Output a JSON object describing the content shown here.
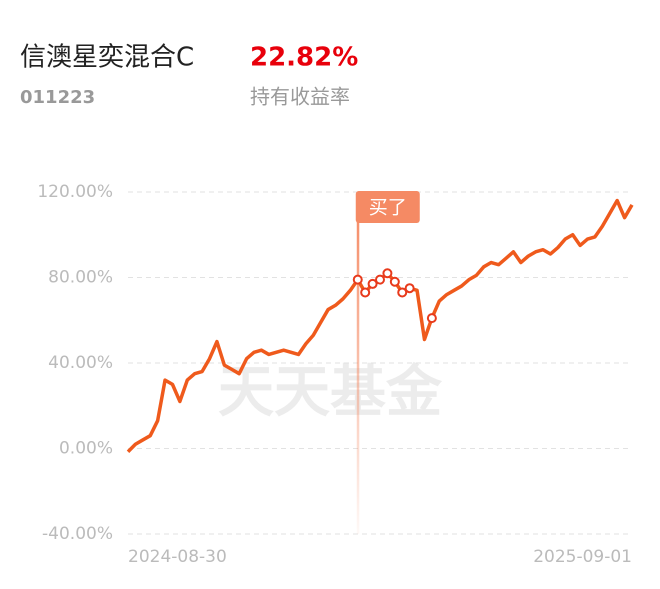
{
  "header": {
    "title": "信澳星奕混合C",
    "code": "011223",
    "return_value": "22.82%",
    "return_label": "持有收益率"
  },
  "chart_data": {
    "type": "line",
    "watermark": "天天基金",
    "categories": [
      "2024-08-30",
      null,
      null,
      null,
      null,
      null,
      null,
      null,
      null,
      null,
      null,
      null,
      null,
      null,
      null,
      null,
      null,
      null,
      null,
      null,
      null,
      null,
      null,
      null,
      null,
      null,
      null,
      null,
      null,
      null,
      null,
      null,
      null,
      null,
      null,
      null,
      null,
      null,
      null,
      null,
      null,
      null,
      null,
      null,
      null,
      null,
      null,
      null,
      null,
      null,
      null,
      null,
      null,
      null,
      null,
      null,
      null,
      null,
      null,
      null,
      null,
      null,
      null,
      null,
      null,
      null,
      null,
      null,
      "2025-09-01"
    ],
    "series": [
      {
        "name": "持有收益率",
        "color": "#ef5a1c",
        "values": [
          -1.5,
          2,
          4,
          6,
          13,
          32,
          30,
          22,
          32,
          35,
          36,
          42,
          50,
          39,
          37,
          35,
          42,
          45,
          46,
          44,
          45,
          46,
          45,
          44,
          49,
          53,
          59,
          65,
          67,
          70,
          74,
          79,
          73,
          77,
          79,
          82,
          78,
          73,
          75,
          74,
          51,
          61,
          69,
          72,
          74,
          76,
          79,
          81,
          85,
          87,
          86,
          89,
          92,
          87,
          90,
          92,
          93,
          91,
          94,
          98,
          100,
          95,
          98,
          99,
          104,
          110,
          116,
          108,
          114
        ]
      }
    ],
    "annotation": {
      "label": "买了",
      "at": 31,
      "color": "#f58a64"
    },
    "markers": [
      31,
      32,
      33,
      34,
      35,
      36,
      37,
      38,
      41
    ],
    "ylim": [
      -40,
      120
    ],
    "yticks": [
      {
        "value": -40,
        "label": "-40.00%"
      },
      {
        "value": 0,
        "label": "0.00%"
      },
      {
        "value": 40,
        "label": "40.00%"
      },
      {
        "value": 80,
        "label": "80.00%"
      },
      {
        "value": 120,
        "label": "120.00%"
      }
    ],
    "grid": true
  }
}
